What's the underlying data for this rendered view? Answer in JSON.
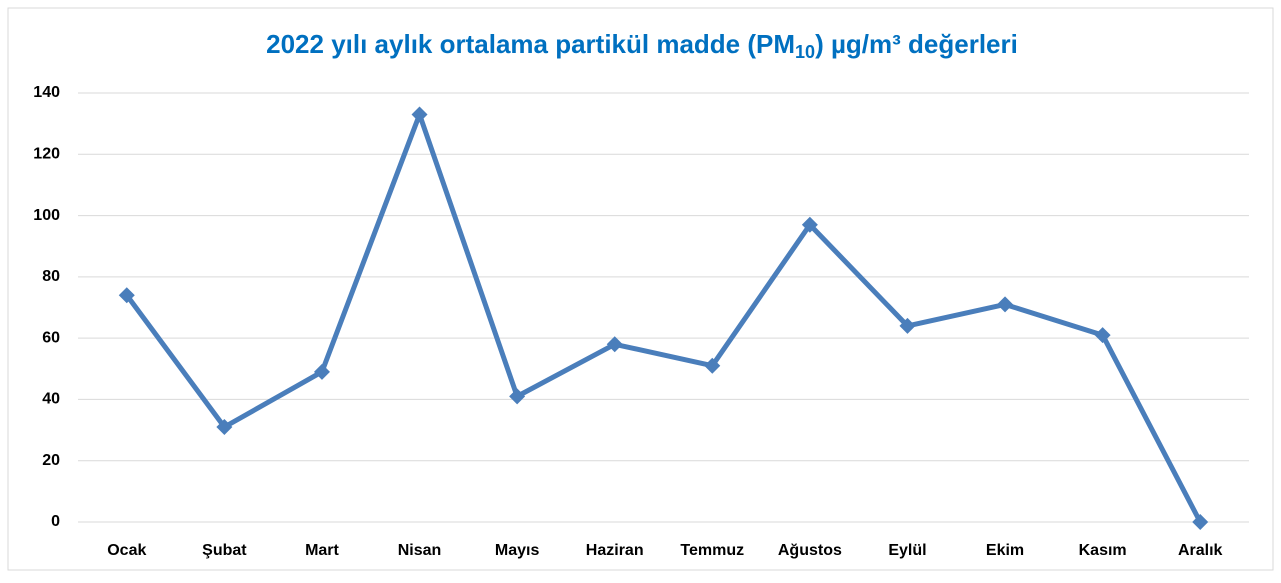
{
  "chart_data": {
    "type": "line",
    "title": [
      "2022 yılı aylık ortalama partikül madde (PM",
      "10",
      ") µg/m³ değerleri"
    ],
    "categories": [
      "Ocak",
      "Şubat",
      "Mart",
      "Nisan",
      "Mayıs",
      "Haziran",
      "Temmuz",
      "Ağustos",
      "Eylül",
      "Ekim",
      "Kasım",
      "Aralık"
    ],
    "series": [
      {
        "color": "#4a7ebb",
        "values": [
          74,
          31,
          49,
          133,
          41,
          58,
          51,
          97,
          64,
          71,
          61,
          0
        ]
      }
    ],
    "ylim": [
      0,
      140
    ],
    "yticks": [
      0,
      20,
      40,
      60,
      80,
      100,
      120,
      140
    ],
    "grid": true
  }
}
